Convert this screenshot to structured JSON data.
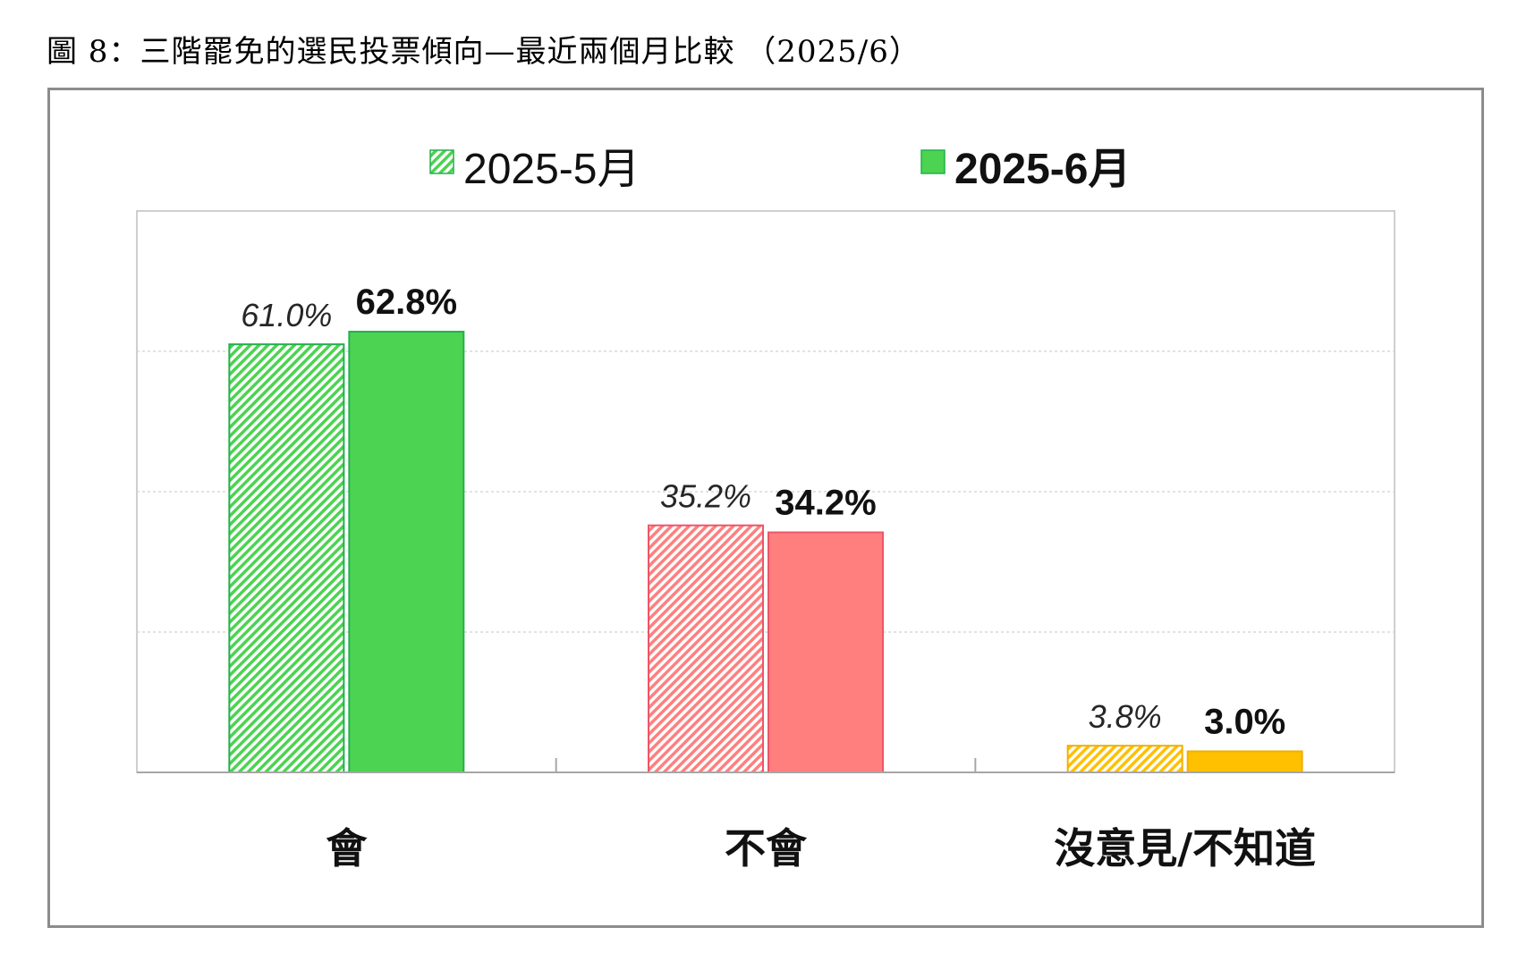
{
  "title": "圖 8：三階罷免的選民投票傾向—最近兩個月比較 （2025/6）",
  "chart_data": {
    "type": "bar",
    "categories": [
      "會",
      "不會",
      "沒意見/不知道"
    ],
    "series": [
      {
        "name": "2025-5月",
        "values": [
          61.0,
          35.2,
          3.8
        ],
        "labels": [
          "61.0%",
          "35.2%",
          "3.8%"
        ],
        "style": "hatched"
      },
      {
        "name": "2025-6月",
        "values": [
          62.8,
          34.2,
          3.0
        ],
        "labels": [
          "62.8%",
          "34.2%",
          "3.0%"
        ],
        "style": "solid"
      }
    ],
    "category_colors": [
      "#4cd351",
      "#ff7f7f",
      "#ffc000"
    ],
    "category_stroke_colors": [
      "#22b14c",
      "#ee5566",
      "#f0b000"
    ],
    "ylim": [
      0,
      80
    ],
    "gridlines": [
      20,
      40,
      60
    ],
    "legend": "top",
    "xlabel": "",
    "ylabel": ""
  }
}
